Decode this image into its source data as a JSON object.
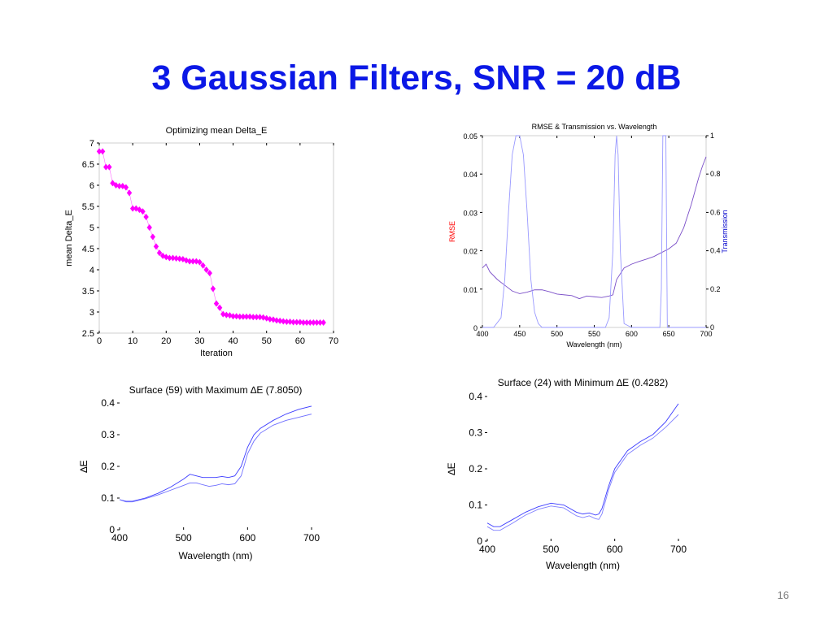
{
  "slide": {
    "title": "3 Gaussian Filters, SNR = 20 dB",
    "page_number": "16",
    "title_color": "#0b18e6"
  },
  "chart_data": [
    {
      "type": "scatter",
      "title": "Optimizing mean Delta_E",
      "xlabel": "Iteration",
      "ylabel": "mean Delta_E",
      "xlim": [
        0,
        70
      ],
      "ylim": [
        2.5,
        7
      ],
      "xticks": [
        0,
        10,
        20,
        30,
        40,
        50,
        60,
        70
      ],
      "yticks": [
        2.5,
        3,
        3.5,
        4,
        4.5,
        5,
        5.5,
        6,
        6.5,
        7
      ],
      "ytick_labels": [
        "2.5",
        "3",
        "3.5",
        "4",
        "4.5",
        "5",
        "5.5",
        "6",
        "6.5",
        "7"
      ],
      "marker": "diamond",
      "color": "#ff00ff",
      "x": [
        0,
        1,
        2,
        3,
        4,
        5,
        6,
        7,
        8,
        9,
        10,
        11,
        12,
        13,
        14,
        15,
        16,
        17,
        18,
        19,
        20,
        21,
        22,
        23,
        24,
        25,
        26,
        27,
        28,
        29,
        30,
        31,
        32,
        33,
        34,
        35,
        36,
        37,
        38,
        39,
        40,
        41,
        42,
        43,
        44,
        45,
        46,
        47,
        48,
        49,
        50,
        51,
        52,
        53,
        54,
        55,
        56,
        57,
        58,
        59,
        60,
        61,
        62,
        63,
        64,
        65,
        66,
        67
      ],
      "y": [
        6.8,
        6.8,
        6.43,
        6.43,
        6.05,
        6.0,
        5.98,
        5.98,
        5.95,
        5.82,
        5.45,
        5.45,
        5.42,
        5.38,
        5.25,
        5.0,
        4.78,
        4.55,
        4.4,
        4.33,
        4.3,
        4.28,
        4.28,
        4.27,
        4.26,
        4.25,
        4.22,
        4.2,
        4.2,
        4.2,
        4.18,
        4.1,
        4.0,
        3.92,
        3.55,
        3.2,
        3.1,
        2.95,
        2.93,
        2.92,
        2.9,
        2.9,
        2.89,
        2.89,
        2.89,
        2.89,
        2.88,
        2.88,
        2.88,
        2.87,
        2.85,
        2.83,
        2.82,
        2.8,
        2.79,
        2.78,
        2.77,
        2.77,
        2.76,
        2.76,
        2.76,
        2.75,
        2.75,
        2.75,
        2.75,
        2.75,
        2.75,
        2.75
      ]
    },
    {
      "type": "line",
      "title": "RMSE & Transmission vs. Wavelength",
      "xlabel": "Wavelength (nm)",
      "ylabel": "RMSE",
      "y2label": "Transmission",
      "xlim": [
        400,
        700
      ],
      "ylim": [
        0,
        0.05
      ],
      "y2lim": [
        0,
        1
      ],
      "xticks": [
        400,
        450,
        500,
        550,
        600,
        650,
        700
      ],
      "yticks": [
        0,
        0.01,
        0.02,
        0.03,
        0.04,
        0.05
      ],
      "ytick_labels": [
        "0",
        "0.01",
        "0.02",
        "0.03",
        "0.04",
        "0.05"
      ],
      "y2ticks": [
        0,
        0.2,
        0.4,
        0.6,
        0.8,
        1
      ],
      "y2tick_labels": [
        "0",
        "0.2",
        "0.4",
        "0.6",
        "0.8",
        "1"
      ],
      "ylabel_color": "#ff0000",
      "y2label_color": "#0000cc",
      "series": [
        {
          "color": "#7b4fc8",
          "axis": "left",
          "x": [
            400,
            405,
            410,
            420,
            430,
            440,
            450,
            460,
            470,
            480,
            490,
            500,
            510,
            520,
            530,
            540,
            550,
            560,
            570,
            575,
            580,
            590,
            600,
            610,
            620,
            630,
            640,
            650,
            660,
            670,
            680,
            690,
            695,
            700
          ],
          "y": [
            0.0155,
            0.0165,
            0.0145,
            0.0125,
            0.011,
            0.0095,
            0.0088,
            0.0092,
            0.0098,
            0.0098,
            0.0093,
            0.0087,
            0.0085,
            0.0083,
            0.0075,
            0.0082,
            0.008,
            0.0078,
            0.0082,
            0.0085,
            0.0125,
            0.0155,
            0.0165,
            0.0172,
            0.0178,
            0.0185,
            0.0195,
            0.0205,
            0.022,
            0.026,
            0.032,
            0.039,
            0.042,
            0.0445
          ]
        },
        {
          "color": "#9999ff",
          "axis": "right",
          "x": [
            400,
            415,
            425,
            430,
            435,
            440,
            445,
            450,
            455,
            460,
            465,
            470,
            475,
            480,
            500,
            550,
            565,
            570,
            575,
            578,
            580,
            582,
            585,
            590,
            600,
            630,
            638,
            640,
            642,
            644,
            646,
            648,
            660,
            700
          ],
          "y": [
            0,
            0,
            0.05,
            0.25,
            0.6,
            0.9,
            1,
            1,
            0.9,
            0.6,
            0.25,
            0.08,
            0.02,
            0,
            0,
            0,
            0,
            0.05,
            0.4,
            0.9,
            1,
            0.9,
            0.4,
            0.02,
            0,
            0,
            0,
            0.2,
            1,
            1,
            1,
            0,
            0,
            0
          ]
        }
      ]
    },
    {
      "type": "line",
      "title": "Surface (59) with Maximum ∆E (7.8050)",
      "xlabel": "Wavelength (nm)",
      "ylabel": "∆E",
      "xlim": [
        400,
        700
      ],
      "ylim": [
        0,
        0.4
      ],
      "xticks": [
        400,
        500,
        600,
        700
      ],
      "yticks": [
        0,
        0.1,
        0.2,
        0.3,
        0.4
      ],
      "ytick_labels": [
        "0",
        "0.1",
        "0.2",
        "0.3",
        "0.4"
      ],
      "series": [
        {
          "color": "#3c3cff",
          "x": [
            400,
            410,
            420,
            440,
            460,
            480,
            500,
            510,
            520,
            530,
            540,
            550,
            560,
            570,
            580,
            590,
            600,
            610,
            620,
            640,
            660,
            680,
            700
          ],
          "y": [
            0.095,
            0.09,
            0.09,
            0.1,
            0.115,
            0.135,
            0.16,
            0.175,
            0.17,
            0.165,
            0.165,
            0.165,
            0.168,
            0.165,
            0.17,
            0.2,
            0.26,
            0.3,
            0.32,
            0.345,
            0.365,
            0.38,
            0.39
          ]
        },
        {
          "color": "#6e6eff",
          "x": [
            400,
            410,
            420,
            440,
            460,
            480,
            500,
            510,
            520,
            530,
            540,
            550,
            560,
            570,
            580,
            590,
            600,
            610,
            620,
            640,
            660,
            680,
            700
          ],
          "y": [
            0.095,
            0.088,
            0.088,
            0.098,
            0.11,
            0.125,
            0.14,
            0.148,
            0.148,
            0.142,
            0.137,
            0.14,
            0.145,
            0.142,
            0.145,
            0.17,
            0.24,
            0.28,
            0.305,
            0.33,
            0.345,
            0.355,
            0.365
          ]
        }
      ]
    },
    {
      "type": "line",
      "title": "Surface (24) with Minimum ∆E (0.4282)",
      "xlabel": "Wavelength (nm)",
      "ylabel": "∆E",
      "xlim": [
        400,
        700
      ],
      "ylim": [
        0,
        0.4
      ],
      "xticks": [
        400,
        500,
        600,
        700
      ],
      "yticks": [
        0,
        0.1,
        0.2,
        0.3,
        0.4
      ],
      "ytick_labels": [
        "0",
        "0.1",
        "0.2",
        "0.3",
        "0.4"
      ],
      "series": [
        {
          "color": "#3c3cff",
          "x": [
            400,
            410,
            420,
            440,
            460,
            480,
            500,
            520,
            540,
            550,
            560,
            570,
            575,
            580,
            590,
            600,
            620,
            640,
            660,
            680,
            700
          ],
          "y": [
            0.05,
            0.04,
            0.04,
            0.06,
            0.08,
            0.095,
            0.105,
            0.1,
            0.08,
            0.075,
            0.078,
            0.072,
            0.075,
            0.09,
            0.15,
            0.2,
            0.25,
            0.275,
            0.295,
            0.33,
            0.38
          ]
        },
        {
          "color": "#8080ff",
          "x": [
            400,
            410,
            420,
            440,
            460,
            480,
            500,
            520,
            540,
            550,
            560,
            570,
            575,
            580,
            590,
            600,
            620,
            640,
            660,
            680,
            700
          ],
          "y": [
            0.04,
            0.03,
            0.03,
            0.05,
            0.072,
            0.088,
            0.097,
            0.092,
            0.07,
            0.065,
            0.07,
            0.062,
            0.06,
            0.075,
            0.14,
            0.19,
            0.24,
            0.265,
            0.285,
            0.315,
            0.35
          ]
        }
      ]
    }
  ]
}
